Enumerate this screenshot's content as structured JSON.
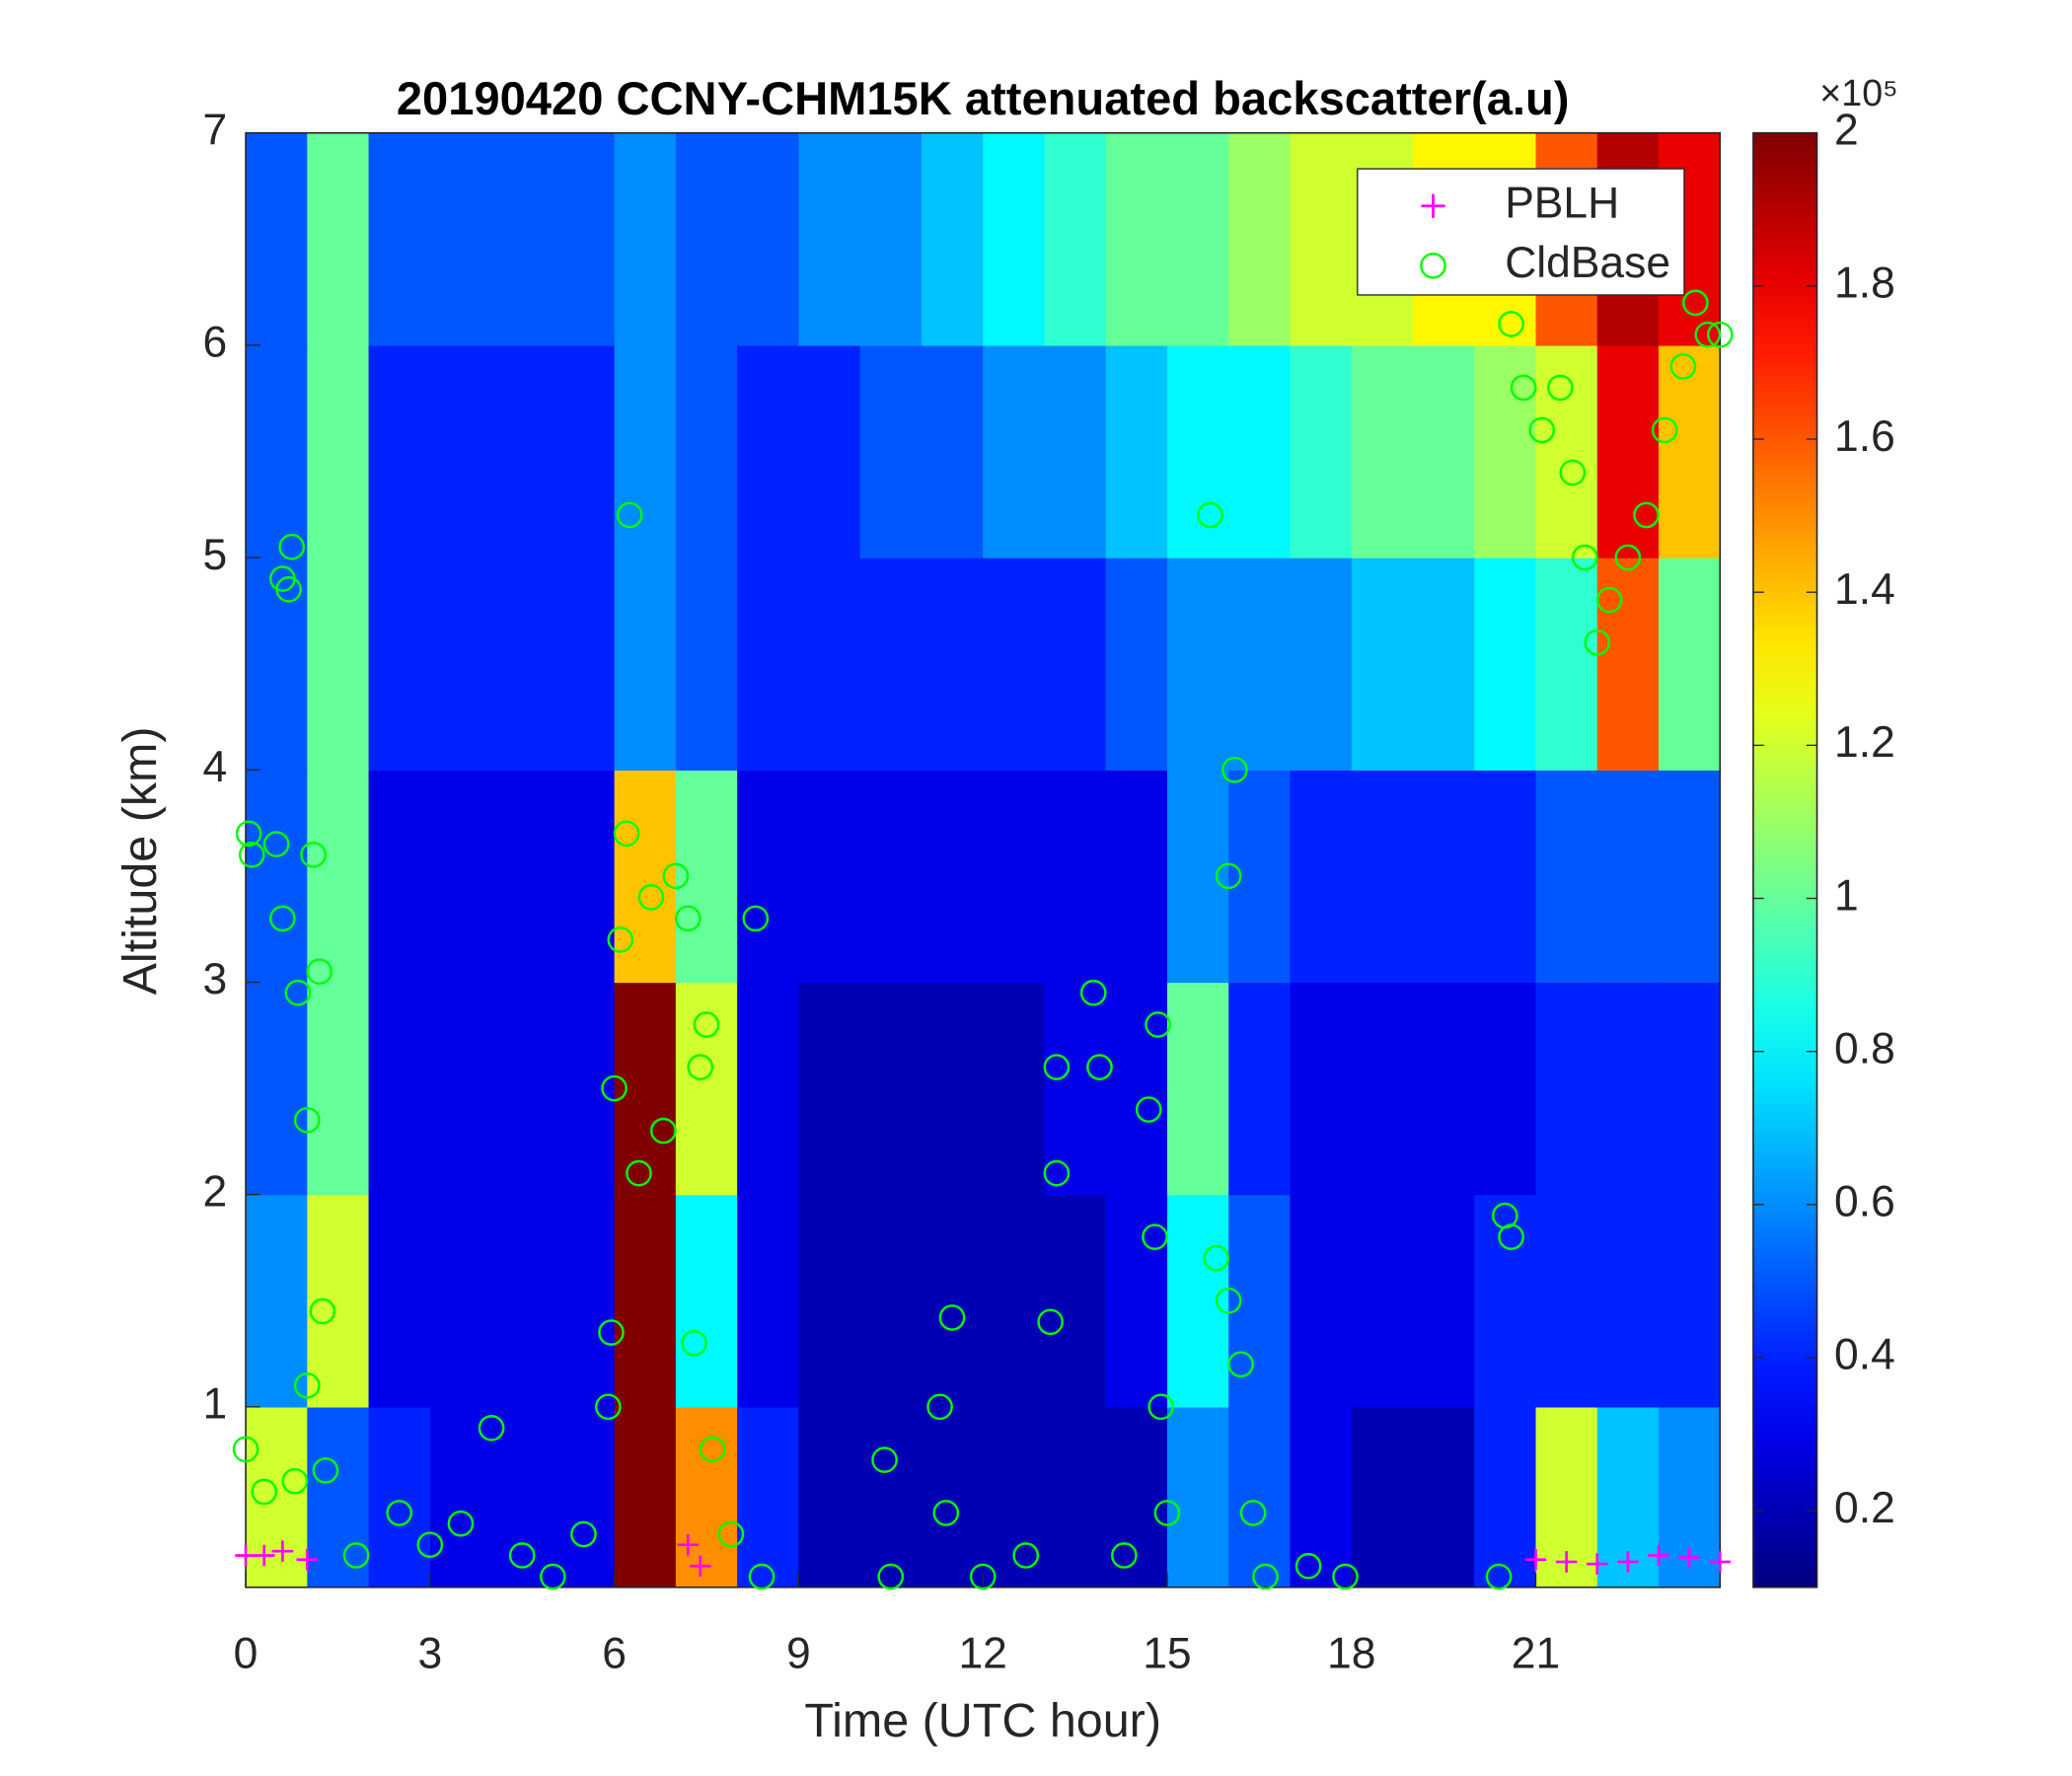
{
  "chart_data": {
    "type": "heatmap",
    "title": "20190420 CCNY-CHM15K attenuated backscatter(a.u)",
    "x_label": "Time (UTC hour)",
    "y_label": "Altitude (km)",
    "xlim": [
      0,
      24
    ],
    "xticks": [
      0,
      3,
      6,
      9,
      12,
      15,
      18,
      21
    ],
    "ylim": [
      0.15,
      7
    ],
    "yticks": [
      1,
      2,
      3,
      4,
      5,
      6,
      7
    ],
    "x_edges": [
      0,
      1,
      2,
      3,
      4,
      5,
      6,
      7,
      8,
      9,
      10,
      11,
      12,
      13,
      14,
      15,
      16,
      17,
      18,
      19,
      20,
      21,
      22,
      23,
      24
    ],
    "y_edges": [
      0.15,
      1,
      2,
      3,
      4,
      5,
      6,
      7
    ],
    "z": [
      [
        1.2,
        0.5,
        0.4,
        0.3,
        0.3,
        0.3,
        2,
        1.5,
        0.4,
        0.2,
        0.2,
        0.2,
        0.2,
        0.2,
        0.2,
        0.6,
        0.5,
        0.3,
        0.2,
        0.2,
        0.4,
        1.2,
        0.7,
        0.6
      ],
      [
        0.6,
        1.2,
        0.3,
        0.3,
        0.3,
        0.3,
        2,
        0.8,
        0.3,
        0.2,
        0.2,
        0.2,
        0.2,
        0.2,
        0.3,
        0.8,
        0.5,
        0.3,
        0.3,
        0.3,
        0.4,
        0.4,
        0.4,
        0.4
      ],
      [
        0.5,
        1.0,
        0.3,
        0.3,
        0.3,
        0.3,
        2,
        1.2,
        0.3,
        0.2,
        0.2,
        0.2,
        0.2,
        0.3,
        0.3,
        1.0,
        0.4,
        0.3,
        0.3,
        0.3,
        0.3,
        0.4,
        0.4,
        0.4
      ],
      [
        0.5,
        1.0,
        0.3,
        0.3,
        0.3,
        0.3,
        1.4,
        1.0,
        0.3,
        0.3,
        0.3,
        0.3,
        0.3,
        0.3,
        0.3,
        0.6,
        0.5,
        0.4,
        0.4,
        0.4,
        0.4,
        0.5,
        0.5,
        0.5
      ],
      [
        0.5,
        1.0,
        0.4,
        0.4,
        0.4,
        0.4,
        0.6,
        0.5,
        0.4,
        0.4,
        0.4,
        0.4,
        0.4,
        0.4,
        0.5,
        0.6,
        0.6,
        0.6,
        0.7,
        0.7,
        0.8,
        0.9,
        1.6,
        1.0
      ],
      [
        0.5,
        1.0,
        0.4,
        0.4,
        0.4,
        0.4,
        0.6,
        0.5,
        0.4,
        0.4,
        0.5,
        0.5,
        0.6,
        0.6,
        0.7,
        0.8,
        0.8,
        0.9,
        1.0,
        1.0,
        1.1,
        1.2,
        1.8,
        1.4
      ],
      [
        0.5,
        1.0,
        0.5,
        0.5,
        0.5,
        0.5,
        0.6,
        0.5,
        0.5,
        0.6,
        0.6,
        0.7,
        0.8,
        0.9,
        1.0,
        1.0,
        1.1,
        1.2,
        1.2,
        1.3,
        1.3,
        1.6,
        1.9,
        1.8
      ]
    ],
    "clim": [
      0.1,
      2
    ],
    "cticks": [
      0.2,
      0.4,
      0.6,
      0.8,
      1,
      1.2,
      1.4,
      1.6,
      1.8,
      2
    ],
    "colorbar_multiplier": "×10⁵",
    "colormap": "jet",
    "legend_position": "upper right",
    "series": [
      {
        "name": "PBLH",
        "color": "#ff00ff",
        "marker": "+",
        "x": [
          0,
          0.3,
          0.6,
          1,
          7.2,
          7.4,
          21,
          21.5,
          22,
          22.5,
          23,
          23.5,
          24
        ],
        "values": [
          0.3,
          0.3,
          0.32,
          0.28,
          0.35,
          0.25,
          0.28,
          0.27,
          0.26,
          0.27,
          0.3,
          0.29,
          0.27
        ]
      },
      {
        "name": "CldBase",
        "color": "#00ff00",
        "marker": "o",
        "x": [
          0.05,
          0.1,
          0.6,
          0.7,
          0.75,
          0.5,
          0.6,
          0.85,
          1.1,
          1.2,
          1.0,
          1.25,
          1.0,
          0.0,
          0.3,
          0.8,
          1.3,
          1.8,
          2.5,
          3,
          3.5,
          4,
          4.5,
          5,
          5.5,
          5.9,
          5.95,
          6,
          6.1,
          6.2,
          6.25,
          6.4,
          6.6,
          6.8,
          7,
          7.2,
          7.4,
          7.5,
          7.3,
          7.6,
          7.9,
          8.3,
          8.4,
          10.4,
          10.5,
          11.3,
          11.4,
          11.5,
          12,
          12.7,
          13.1,
          13.2,
          13.2,
          13.8,
          13.9,
          14.3,
          14.7,
          14.8,
          14.85,
          14.9,
          15.0,
          15.7,
          15.8,
          16,
          16,
          16.1,
          16.2,
          16.4,
          16.6,
          17.3,
          17.9,
          20.4,
          20.5,
          20.6,
          20.6,
          20.8,
          21.1,
          21.4,
          21.6,
          21.8,
          22,
          22.2,
          22.5,
          22.8,
          23.1,
          23.4,
          23.6,
          23.8,
          24
        ],
        "values": [
          3.7,
          3.6,
          4.9,
          4.85,
          5.05,
          3.65,
          3.3,
          2.95,
          3.6,
          3.05,
          2.35,
          1.45,
          1.1,
          0.8,
          0.6,
          0.65,
          0.7,
          0.3,
          0.5,
          0.35,
          0.45,
          0.9,
          0.3,
          0.2,
          0.4,
          1.0,
          1.35,
          2.5,
          3.2,
          3.7,
          5.2,
          2.1,
          3.4,
          2.3,
          3.5,
          3.3,
          2.6,
          2.8,
          1.3,
          0.8,
          0.4,
          3.3,
          0.2,
          0.75,
          0.2,
          1.0,
          0.5,
          1.42,
          0.2,
          0.3,
          1.4,
          2.6,
          2.1,
          2.95,
          2.6,
          0.3,
          2.4,
          1.8,
          2.8,
          1.0,
          0.5,
          5.2,
          1.7,
          1.5,
          3.5,
          4.0,
          1.2,
          0.5,
          0.2,
          0.25,
          0.2,
          0.2,
          1.9,
          1.8,
          6.1,
          5.8,
          5.6,
          5.8,
          5.4,
          5.0,
          4.6,
          4.8,
          5.0,
          5.2,
          5.6,
          5.9,
          6.2,
          6.05,
          6.05
        ]
      }
    ]
  }
}
